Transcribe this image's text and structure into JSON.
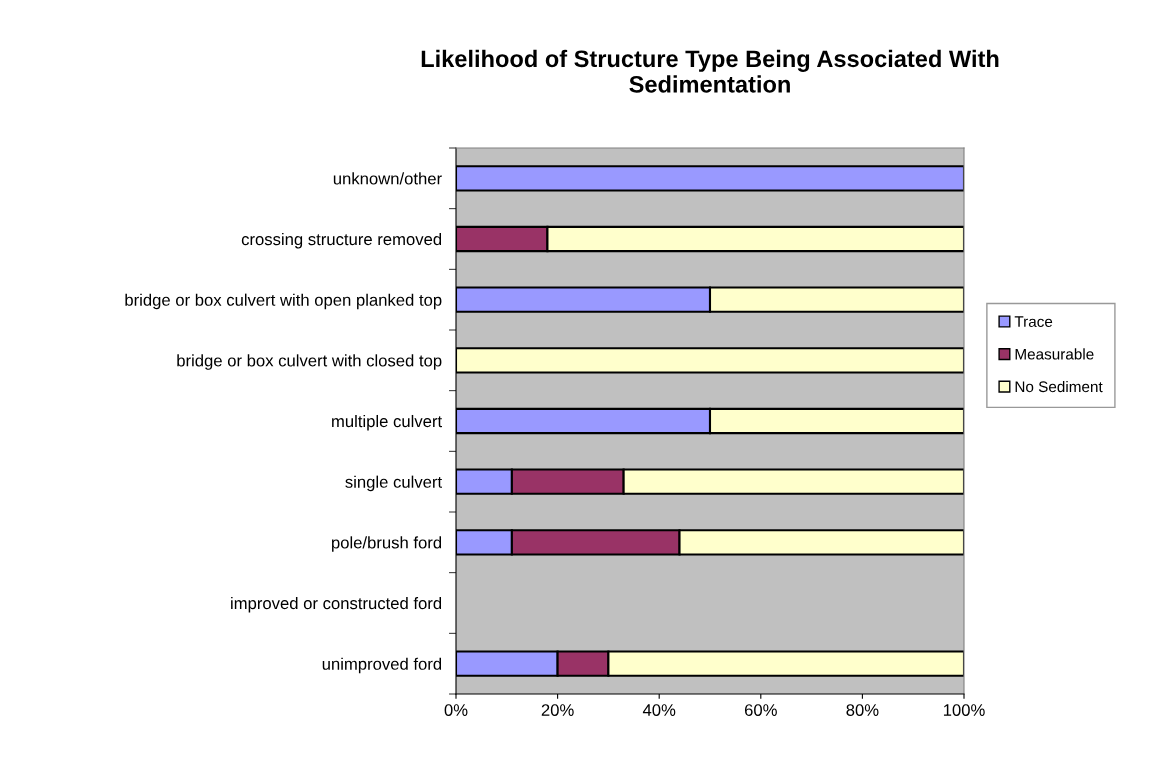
{
  "chart_data": {
    "type": "bar",
    "orientation": "horizontal",
    "stacked": true,
    "title": "Likelihood of Structure Type Being Associated With\nSedimentation",
    "categories": [
      "unknown/other",
      "crossing structure removed",
      "bridge or box culvert with open planked top",
      "bridge or box culvert with closed top",
      "multiple culvert",
      "single culvert",
      "pole/brush ford",
      "improved or constructed ford",
      "unimproved ford"
    ],
    "series": [
      {
        "name": "Trace",
        "color": "#9999ff",
        "values": [
          100,
          0,
          50,
          0,
          50,
          11,
          11,
          null,
          20
        ]
      },
      {
        "name": "Measurable",
        "color": "#993366",
        "values": [
          0,
          18,
          0,
          0,
          0,
          22,
          33,
          null,
          10
        ]
      },
      {
        "name": "No Sediment",
        "color": "#ffffcc",
        "values": [
          0,
          82,
          50,
          100,
          50,
          67,
          56,
          null,
          70
        ]
      }
    ],
    "xlim": [
      0,
      100
    ],
    "xticks": [
      {
        "value": 0,
        "label": "0%"
      },
      {
        "value": 20,
        "label": "20%"
      },
      {
        "value": 40,
        "label": "40%"
      },
      {
        "value": 60,
        "label": "60%"
      },
      {
        "value": 80,
        "label": "80%"
      },
      {
        "value": 100,
        "label": "100%"
      }
    ],
    "grid": false,
    "legend": "right"
  }
}
